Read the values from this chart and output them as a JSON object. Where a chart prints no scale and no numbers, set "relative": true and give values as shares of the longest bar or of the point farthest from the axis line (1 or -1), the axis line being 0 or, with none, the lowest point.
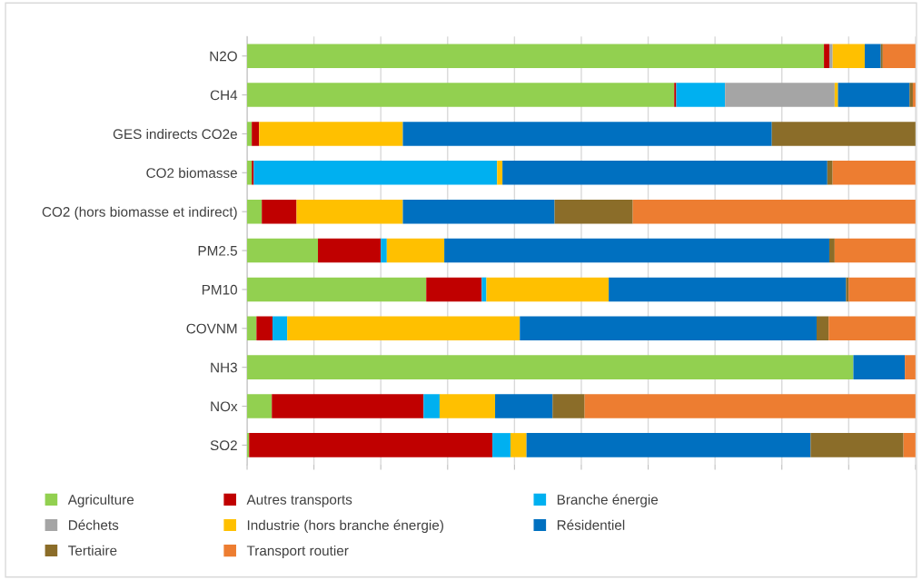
{
  "chart_data": {
    "type": "bar",
    "orientation": "horizontal",
    "stacked": true,
    "relative": true,
    "grid": "x",
    "legend": "bottom",
    "categories": [
      "N2O",
      "CH4",
      "GES indirects CO2e",
      "CO2 biomasse",
      "CO2 (hors biomasse et indirect)",
      "PM2.5",
      "PM10",
      "COVNM",
      "NH3",
      "NOx",
      "SO2"
    ],
    "series": [
      {
        "name": "Agriculture",
        "color": "#92d050",
        "values": [
          0.863,
          0.639,
          0.007,
          0.007,
          0.022,
          0.106,
          0.268,
          0.014,
          0.907,
          0.037,
          0.003
        ]
      },
      {
        "name": "Autres transports",
        "color": "#c00000",
        "values": [
          0.008,
          0.003,
          0.011,
          0.003,
          0.052,
          0.094,
          0.083,
          0.024,
          0,
          0.227,
          0.364
        ]
      },
      {
        "name": "Branche énergie",
        "color": "#00b0f0",
        "values": [
          0,
          0.073,
          0,
          0.364,
          0,
          0.009,
          0.007,
          0.022,
          0,
          0.024,
          0.027
        ]
      },
      {
        "name": "Déchets",
        "color": "#a5a5a5",
        "values": [
          0.005,
          0.164,
          0,
          0,
          0,
          0,
          0,
          0,
          0,
          0,
          0
        ]
      },
      {
        "name": "Industrie (hors branche énergie)",
        "color": "#ffc000",
        "values": [
          0.048,
          0.005,
          0.215,
          0.008,
          0.159,
          0.086,
          0.183,
          0.348,
          0,
          0.083,
          0.024
        ]
      },
      {
        "name": "Résidentiel",
        "color": "#0070c0",
        "values": [
          0.024,
          0.107,
          0.552,
          0.486,
          0.227,
          0.576,
          0.355,
          0.444,
          0.077,
          0.086,
          0.425
        ]
      },
      {
        "name": "Tertiaire",
        "color": "#8b6d29",
        "values": [
          0.003,
          0.005,
          0.215,
          0.008,
          0.117,
          0.008,
          0.004,
          0.018,
          0,
          0.048,
          0.139
        ]
      },
      {
        "name": "Transport routier",
        "color": "#ed7d31",
        "values": [
          0.049,
          0.004,
          0,
          0.124,
          0.423,
          0.121,
          0.1,
          0.13,
          0.016,
          0.495,
          0.018
        ]
      }
    ]
  }
}
